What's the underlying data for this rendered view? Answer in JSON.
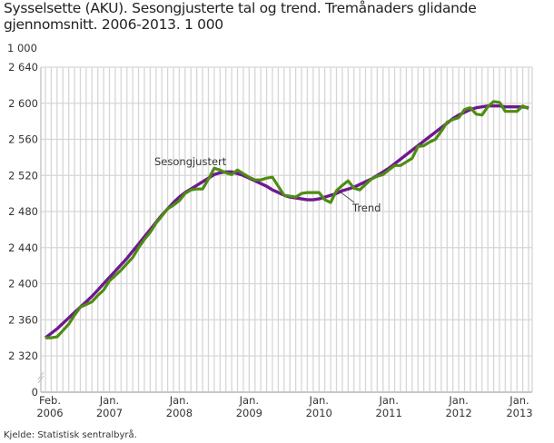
{
  "chart_data": {
    "type": "line",
    "title": "Sysselsette (AKU).  Sesongjusterte tal og trend. Tremånaders glidande gjennomsnitt. 2006-2013. 1 000",
    "ylabel": "1 000",
    "source": "Kjelde: Statistisk sentralbyrå.",
    "ylim": [
      2320,
      2640
    ],
    "axis_break": true,
    "yticks": [
      "2 640",
      "2 600",
      "2 560",
      "2 520",
      "2 480",
      "2 440",
      "2 400",
      "2 360",
      "2 320",
      "0"
    ],
    "ytick_values": [
      2640,
      2600,
      2560,
      2520,
      2480,
      2440,
      2400,
      2360,
      2320,
      0
    ],
    "xticks": [
      {
        "label": [
          "Feb.",
          "2006"
        ],
        "month": "2006-02"
      },
      {
        "label": [
          "Jan.",
          "2007"
        ],
        "month": "2007-01"
      },
      {
        "label": [
          "Jan.",
          "2008"
        ],
        "month": "2008-01"
      },
      {
        "label": [
          "Jan.",
          "2009"
        ],
        "month": "2009-01"
      },
      {
        "label": [
          "Jan.",
          "2010"
        ],
        "month": "2010-01"
      },
      {
        "label": [
          "Jan.",
          "2011"
        ],
        "month": "2011-01"
      },
      {
        "label": [
          "Jan.",
          "2012"
        ],
        "month": "2012-01"
      },
      {
        "label": [
          "Jan.",
          "2013"
        ],
        "month": "2013-01"
      }
    ],
    "grid": true,
    "x": [
      "2006-02",
      "2006-03",
      "2006-04",
      "2006-05",
      "2006-06",
      "2006-07",
      "2006-08",
      "2006-09",
      "2006-10",
      "2006-11",
      "2006-12",
      "2007-01",
      "2007-02",
      "2007-03",
      "2007-04",
      "2007-05",
      "2007-06",
      "2007-07",
      "2007-08",
      "2007-09",
      "2007-10",
      "2007-11",
      "2007-12",
      "2008-01",
      "2008-02",
      "2008-03",
      "2008-04",
      "2008-05",
      "2008-06",
      "2008-07",
      "2008-08",
      "2008-09",
      "2008-10",
      "2008-11",
      "2008-12",
      "2009-01",
      "2009-02",
      "2009-03",
      "2009-04",
      "2009-05",
      "2009-06",
      "2009-07",
      "2009-08",
      "2009-09",
      "2009-10",
      "2009-11",
      "2009-12",
      "2010-01",
      "2010-02",
      "2010-03",
      "2010-04",
      "2010-05",
      "2010-06",
      "2010-07",
      "2010-08",
      "2010-09",
      "2010-10",
      "2010-11",
      "2010-12",
      "2011-01",
      "2011-02",
      "2011-03",
      "2011-04",
      "2011-05",
      "2011-06",
      "2011-07",
      "2011-08",
      "2011-09",
      "2011-10",
      "2011-11",
      "2011-12",
      "2012-01",
      "2012-02",
      "2012-03",
      "2012-04",
      "2012-05",
      "2012-06",
      "2012-07",
      "2012-08",
      "2012-09",
      "2012-10",
      "2012-11",
      "2012-12",
      "2013-01"
    ],
    "series": [
      {
        "name": "Sesongjustert",
        "color": "#4e8c12",
        "values": [
          2340,
          2340,
          2341,
          2348,
          2355,
          2365,
          2374,
          2377,
          2380,
          2387,
          2393,
          2403,
          2409,
          2415,
          2422,
          2429,
          2440,
          2449,
          2457,
          2467,
          2475,
          2483,
          2487,
          2492,
          2500,
          2504,
          2505,
          2505,
          2516,
          2528,
          2526,
          2523,
          2521,
          2526,
          2522,
          2518,
          2515,
          2515,
          2517,
          2518,
          2508,
          2498,
          2497,
          2496,
          2500,
          2501,
          2501,
          2501,
          2493,
          2490,
          2503,
          2509,
          2514,
          2506,
          2504,
          2510,
          2516,
          2519,
          2521,
          2526,
          2531,
          2531,
          2535,
          2539,
          2552,
          2553,
          2557,
          2560,
          2569,
          2579,
          2582,
          2584,
          2593,
          2595,
          2588,
          2587,
          2596,
          2602,
          2601,
          2591,
          2591,
          2591,
          2597,
          2594
        ]
      },
      {
        "name": "Trend",
        "color": "#6e1a8e",
        "values": [
          2340,
          2345,
          2350,
          2356,
          2362,
          2368,
          2374,
          2380,
          2386,
          2393,
          2400,
          2407,
          2414,
          2421,
          2428,
          2436,
          2444,
          2452,
          2460,
          2468,
          2476,
          2483,
          2490,
          2496,
          2501,
          2505,
          2509,
          2513,
          2517,
          2521,
          2523,
          2524,
          2524,
          2522,
          2520,
          2517,
          2514,
          2511,
          2508,
          2504,
          2501,
          2498,
          2496,
          2495,
          2494,
          2493,
          2493,
          2494,
          2496,
          2498,
          2500,
          2503,
          2505,
          2507,
          2510,
          2513,
          2516,
          2520,
          2524,
          2528,
          2533,
          2538,
          2543,
          2548,
          2553,
          2558,
          2563,
          2568,
          2573,
          2578,
          2583,
          2587,
          2590,
          2593,
          2595,
          2596,
          2597,
          2597,
          2597,
          2596,
          2596,
          2596,
          2596,
          2595
        ]
      }
    ],
    "annotations": [
      "Sesongjustert",
      "Trend"
    ]
  }
}
